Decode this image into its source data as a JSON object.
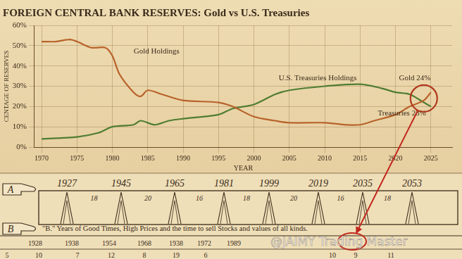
{
  "chart_data": {
    "type": "line",
    "title": "FOREIGN CENTRAL BANK RESERVES: Gold vs U.S. Treasuries",
    "x_label": "YEAR",
    "y_label": "CENTAGE OF RESERVES",
    "xlim": [
      1969,
      2028
    ],
    "xticks": [
      1970,
      1975,
      1980,
      1985,
      1990,
      1995,
      2000,
      2005,
      2010,
      2015,
      2020,
      2025
    ],
    "ylim": [
      0,
      60
    ],
    "yticks": [
      {
        "value": 0,
        "label": "0%"
      },
      {
        "value": 10,
        "label": "10%"
      },
      {
        "value": 20,
        "label": "20%"
      },
      {
        "value": 30,
        "label": "30%"
      },
      {
        "value": 40,
        "label": "40%"
      },
      {
        "value": 50,
        "label": "50%"
      },
      {
        "value": 60,
        "label": "60%"
      }
    ],
    "grid": true,
    "legend": false,
    "series": [
      {
        "name": "Gold Holdings",
        "color": "#b8622a",
        "x": [
          1970,
          1972,
          1974,
          1975,
          1977,
          1979,
          1980,
          1981,
          1983,
          1984,
          1985,
          1987,
          1990,
          1995,
          1997,
          2000,
          2003,
          2005,
          2010,
          2013,
          2015,
          2017,
          2020,
          2022,
          2024,
          2025
        ],
        "values": [
          52,
          52,
          53,
          52,
          49,
          49,
          45,
          36,
          27,
          25,
          28,
          26,
          23,
          22,
          20,
          15,
          13,
          12,
          12,
          11,
          11,
          13,
          16,
          20,
          23,
          27
        ]
      },
      {
        "name": "U.S. Treasuries Holdings",
        "color": "#4f7d32",
        "x": [
          1970,
          1975,
          1978,
          1980,
          1983,
          1984,
          1986,
          1988,
          1990,
          1995,
          1997,
          2000,
          2003,
          2005,
          2010,
          2015,
          2018,
          2020,
          2022,
          2024,
          2025
        ],
        "values": [
          4,
          5,
          7,
          10,
          11,
          13,
          11,
          13,
          14,
          16,
          19,
          21,
          26,
          28,
          30,
          31,
          29,
          27,
          26,
          22,
          20
        ]
      }
    ],
    "annotations": [
      "Gold 24%",
      "Treasuries 23%"
    ]
  },
  "cycle_panel": {
    "row_a_label": "A",
    "row_a_years": [
      1927,
      1945,
      1965,
      1981,
      1999,
      2019,
      2035,
      2053
    ],
    "row_a_intervals": [
      18,
      20,
      16,
      18,
      20,
      16,
      18
    ],
    "row_b_label": "B",
    "row_b_caption": "\"B.\" Years of Good Times, High Prices and the time to sell Stocks and values of all kinds.",
    "row_b_years": [
      1928,
      1938,
      1954,
      1968,
      1938,
      1972,
      1989
    ],
    "bottom_numbers": [
      5,
      10,
      7,
      12,
      8,
      19,
      6,
      10,
      9,
      11
    ]
  },
  "watermark": "@JAIMY Trading Master"
}
